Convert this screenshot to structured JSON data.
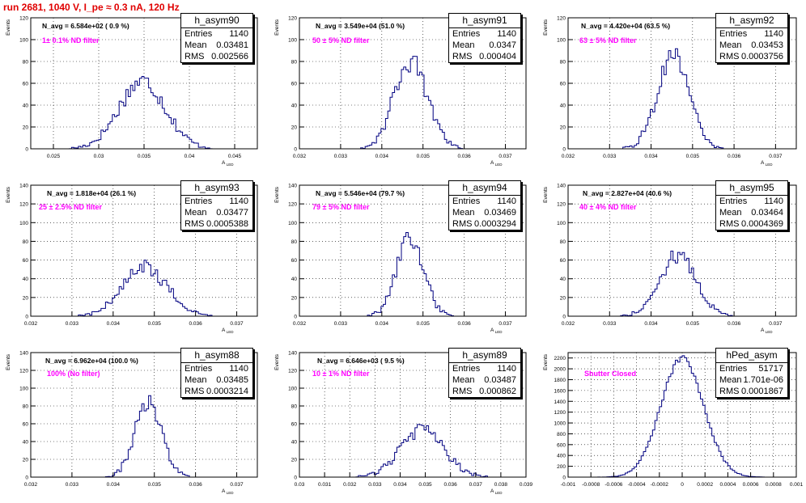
{
  "title": "run 2681,  1040 V, I_pe ≈ 0.3 nA, 120 Hz",
  "colors": {
    "title": "#e00000",
    "hist": "#000080",
    "filter_text": "#ff00ff",
    "grid": "#000000"
  },
  "chart_data": [
    {
      "type": "histogram",
      "name": "h_asym90",
      "navg": "N_avg = 6.584e+02 ( 0.9 %)",
      "filter": "1± 0.1% ND filter",
      "entries": "1140",
      "mean": "0.03481",
      "rms": "0.002566",
      "xlim": [
        0.0225,
        0.0475
      ],
      "ylim": [
        0,
        120
      ],
      "xticks": [
        0.025,
        0.03,
        0.035,
        0.04,
        0.045
      ],
      "xticklabels": [
        "0.025",
        "0.03",
        "0.035",
        "0.04",
        "0.045"
      ],
      "yticks": [
        0,
        20,
        40,
        60,
        80,
        100,
        120
      ],
      "yticklabels": [
        "0",
        "20",
        "40",
        "60",
        "80",
        "100",
        "120"
      ],
      "ylabel": "Events",
      "xlabel": "A_LED",
      "mean_value": 0.03481,
      "rms_value": 0.002566,
      "peak": 62
    },
    {
      "type": "histogram",
      "name": "h_asym91",
      "navg": "N_avg = 3.549e+04 (51.0 %)",
      "filter": "50 ± 5% ND filter",
      "entries": "1140",
      "mean": "0.0347",
      "rms": "0.000404",
      "xlim": [
        0.032,
        0.0375
      ],
      "ylim": [
        0,
        120
      ],
      "xticks": [
        0.032,
        0.033,
        0.034,
        0.035,
        0.036,
        0.037
      ],
      "xticklabels": [
        "0.032",
        "0.033",
        "0.034",
        "0.035",
        "0.036",
        "0.037"
      ],
      "yticks": [
        0,
        20,
        40,
        60,
        80,
        100,
        120
      ],
      "yticklabels": [
        "0",
        "20",
        "40",
        "60",
        "80",
        "100",
        "120"
      ],
      "ylabel": "Events",
      "xlabel": "A_LED",
      "mean_value": 0.0347,
      "rms_value": 0.000404,
      "peak": 80
    },
    {
      "type": "histogram",
      "name": "h_asym92",
      "navg": "N_avg = 4.420e+04 (63.5 %)",
      "filter": "63 ± 5% ND filter",
      "entries": "1140",
      "mean": "0.03453",
      "rms": "0.0003756",
      "xlim": [
        0.032,
        0.0375
      ],
      "ylim": [
        0,
        120
      ],
      "xticks": [
        0.032,
        0.033,
        0.034,
        0.035,
        0.036,
        0.037
      ],
      "xticklabels": [
        "0.032",
        "0.033",
        "0.034",
        "0.035",
        "0.036",
        "0.037"
      ],
      "yticks": [
        0,
        20,
        40,
        60,
        80,
        100,
        120
      ],
      "yticklabels": [
        "0",
        "20",
        "40",
        "60",
        "80",
        "100",
        "120"
      ],
      "ylabel": "Events",
      "xlabel": "A_LED",
      "mean_value": 0.03453,
      "rms_value": 0.0003756,
      "peak": 88
    },
    {
      "type": "histogram",
      "name": "h_asym93",
      "navg": "N_avg = 1.818e+04 (26.1 %)",
      "filter": "25 ± 2.5% ND filter",
      "entries": "1140",
      "mean": "0.03477",
      "rms": "0.0005388",
      "xlim": [
        0.032,
        0.0375
      ],
      "ylim": [
        0,
        140
      ],
      "xticks": [
        0.032,
        0.033,
        0.034,
        0.035,
        0.036,
        0.037
      ],
      "xticklabels": [
        "0.032",
        "0.033",
        "0.034",
        "0.035",
        "0.036",
        "0.037"
      ],
      "yticks": [
        0,
        20,
        40,
        60,
        80,
        100,
        120,
        140
      ],
      "yticklabels": [
        "0",
        "20",
        "40",
        "60",
        "80",
        "100",
        "120",
        "140"
      ],
      "ylabel": "Events",
      "xlabel": "A_LED",
      "mean_value": 0.03477,
      "rms_value": 0.0005388,
      "peak": 52
    },
    {
      "type": "histogram",
      "name": "h_asym94",
      "navg": "N_avg = 5.546e+04 (79.7 %)",
      "filter": "79 ± 5% ND filter",
      "entries": "1140",
      "mean": "0.03469",
      "rms": "0.0003294",
      "xlim": [
        0.032,
        0.0375
      ],
      "ylim": [
        0,
        140
      ],
      "xticks": [
        0.032,
        0.033,
        0.034,
        0.035,
        0.036,
        0.037
      ],
      "xticklabels": [
        "0.032",
        "0.033",
        "0.034",
        "0.035",
        "0.036",
        "0.037"
      ],
      "yticks": [
        0,
        20,
        40,
        60,
        80,
        100,
        120,
        140
      ],
      "yticklabels": [
        "0",
        "20",
        "40",
        "60",
        "80",
        "100",
        "120",
        "140"
      ],
      "ylabel": "Events",
      "xlabel": "A_LED",
      "mean_value": 0.03469,
      "rms_value": 0.0003294,
      "peak": 83
    },
    {
      "type": "histogram",
      "name": "h_asym95",
      "navg": "N_avg = 2.827e+04 (40.6 %)",
      "filter": "40 ± 4% ND filter",
      "entries": "1140",
      "mean": "0.03464",
      "rms": "0.0004369",
      "xlim": [
        0.032,
        0.0375
      ],
      "ylim": [
        0,
        140
      ],
      "xticks": [
        0.032,
        0.033,
        0.034,
        0.035,
        0.036,
        0.037
      ],
      "xticklabels": [
        "0.032",
        "0.033",
        "0.034",
        "0.035",
        "0.036",
        "0.037"
      ],
      "yticks": [
        0,
        20,
        40,
        60,
        80,
        100,
        120,
        140
      ],
      "yticklabels": [
        "0",
        "20",
        "40",
        "60",
        "80",
        "100",
        "120",
        "140"
      ],
      "ylabel": "Events",
      "xlabel": "A_LED",
      "mean_value": 0.03464,
      "rms_value": 0.0004369,
      "peak": 65
    },
    {
      "type": "histogram",
      "name": "h_asym88",
      "navg": "N_avg = 6.962e+04 (100.0 %)",
      "filter": "100% (No filter)",
      "entries": "1140",
      "mean": "0.03485",
      "rms": "0.0003214",
      "xlim": [
        0.032,
        0.0375
      ],
      "ylim": [
        0,
        140
      ],
      "xticks": [
        0.032,
        0.033,
        0.034,
        0.035,
        0.036,
        0.037
      ],
      "xticklabels": [
        "0.032",
        "0.033",
        "0.034",
        "0.035",
        "0.036",
        "0.037"
      ],
      "yticks": [
        0,
        20,
        40,
        60,
        80,
        100,
        120,
        140
      ],
      "yticklabels": [
        "0",
        "20",
        "40",
        "60",
        "80",
        "100",
        "120",
        "140"
      ],
      "ylabel": "Events",
      "xlabel": "A_LED",
      "mean_value": 0.03485,
      "rms_value": 0.0003214,
      "peak": 84
    },
    {
      "type": "histogram",
      "name": "h_asym89",
      "navg": "N_avg = 6.646e+03 ( 9.5 %)",
      "filter": "10 ± 1% ND filter",
      "entries": "1140",
      "mean": "0.03487",
      "rms": "0.000862",
      "xlim": [
        0.03,
        0.039
      ],
      "ylim": [
        0,
        140
      ],
      "xticks": [
        0.03,
        0.031,
        0.032,
        0.033,
        0.034,
        0.035,
        0.036,
        0.037,
        0.038,
        0.039
      ],
      "xticklabels": [
        "0.03",
        "0.031",
        "0.032",
        "0.033",
        "0.034",
        "0.035",
        "0.036",
        "0.037",
        "0.038",
        "0.039"
      ],
      "yticks": [
        0,
        20,
        40,
        60,
        80,
        100,
        120,
        140
      ],
      "yticklabels": [
        "0",
        "20",
        "40",
        "60",
        "80",
        "100",
        "120",
        "140"
      ],
      "ylabel": "Events",
      "xlabel": "A_LED",
      "mean_value": 0.03487,
      "rms_value": 0.000862,
      "peak": 53
    },
    {
      "type": "histogram",
      "name": "hPed_asym",
      "navg": "",
      "filter": "Shutter Closed",
      "entries": "51717",
      "mean": "1.701e-06",
      "rms": "0.0001867",
      "xlim": [
        -0.001,
        0.001
      ],
      "ylim": [
        0,
        2300
      ],
      "xticks": [
        -0.001,
        -0.0008,
        -0.0006,
        -0.0004,
        -0.0002,
        0,
        0.0002,
        0.0004,
        0.0006,
        0.0008,
        0.001
      ],
      "xticklabels": [
        "-0.001",
        "-0.0008",
        "-0.0006",
        "-0.0004",
        "-0.0002",
        "0",
        "0.0002",
        "0.0004",
        "0.0006",
        "0.0008",
        "0.001"
      ],
      "yticks": [
        0,
        200,
        400,
        600,
        800,
        1000,
        1200,
        1400,
        1600,
        1800,
        2000,
        2200
      ],
      "yticklabels": [
        "0",
        "200",
        "400",
        "600",
        "800",
        "1000",
        "1200",
        "1400",
        "1600",
        "1800",
        "2000",
        "2200"
      ],
      "ylabel": "Events",
      "xlabel": "",
      "mean_value": 1.7e-06,
      "rms_value": 0.0001867,
      "peak": 2200
    }
  ]
}
